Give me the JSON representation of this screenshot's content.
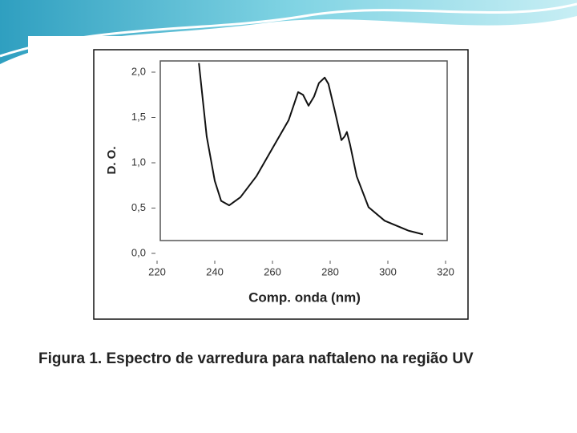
{
  "chart_data": {
    "type": "line",
    "caption": "Figura 1. Espectro de varredura para naftaleno na região UV",
    "x_label": "Comp. onda (nm)",
    "y_label": "D. O.",
    "x": [
      234.5,
      237.2,
      240,
      242.2,
      245,
      248.9,
      254.4,
      260,
      265.6,
      268.9,
      270.6,
      272.5,
      274.4,
      276.1,
      278.1,
      279.4,
      281.7,
      283.9,
      285,
      285.8,
      286.9,
      289.2,
      293.3,
      298.9,
      307.2,
      312.2
    ],
    "series": [
      {
        "color": "#111111",
        "values": [
          2.1,
          1.29,
          0.8,
          0.58,
          0.53,
          0.62,
          0.85,
          1.16,
          1.47,
          1.78,
          1.75,
          1.63,
          1.73,
          1.88,
          1.94,
          1.87,
          1.56,
          1.25,
          1.29,
          1.34,
          1.2,
          0.85,
          0.51,
          0.36,
          0.25,
          0.21
        ]
      }
    ],
    "xlim": [
      220,
      320
    ],
    "xticks": [
      220,
      240,
      260,
      280,
      300,
      320
    ],
    "ylim": [
      0,
      2
    ],
    "yticks": [
      {
        "value": 0,
        "label": "0,0"
      },
      {
        "value": 0.5,
        "label": "0,5"
      },
      {
        "value": 1,
        "label": "1,0"
      },
      {
        "value": 1.5,
        "label": "1,5"
      },
      {
        "value": 2,
        "label": "2,0"
      }
    ]
  }
}
